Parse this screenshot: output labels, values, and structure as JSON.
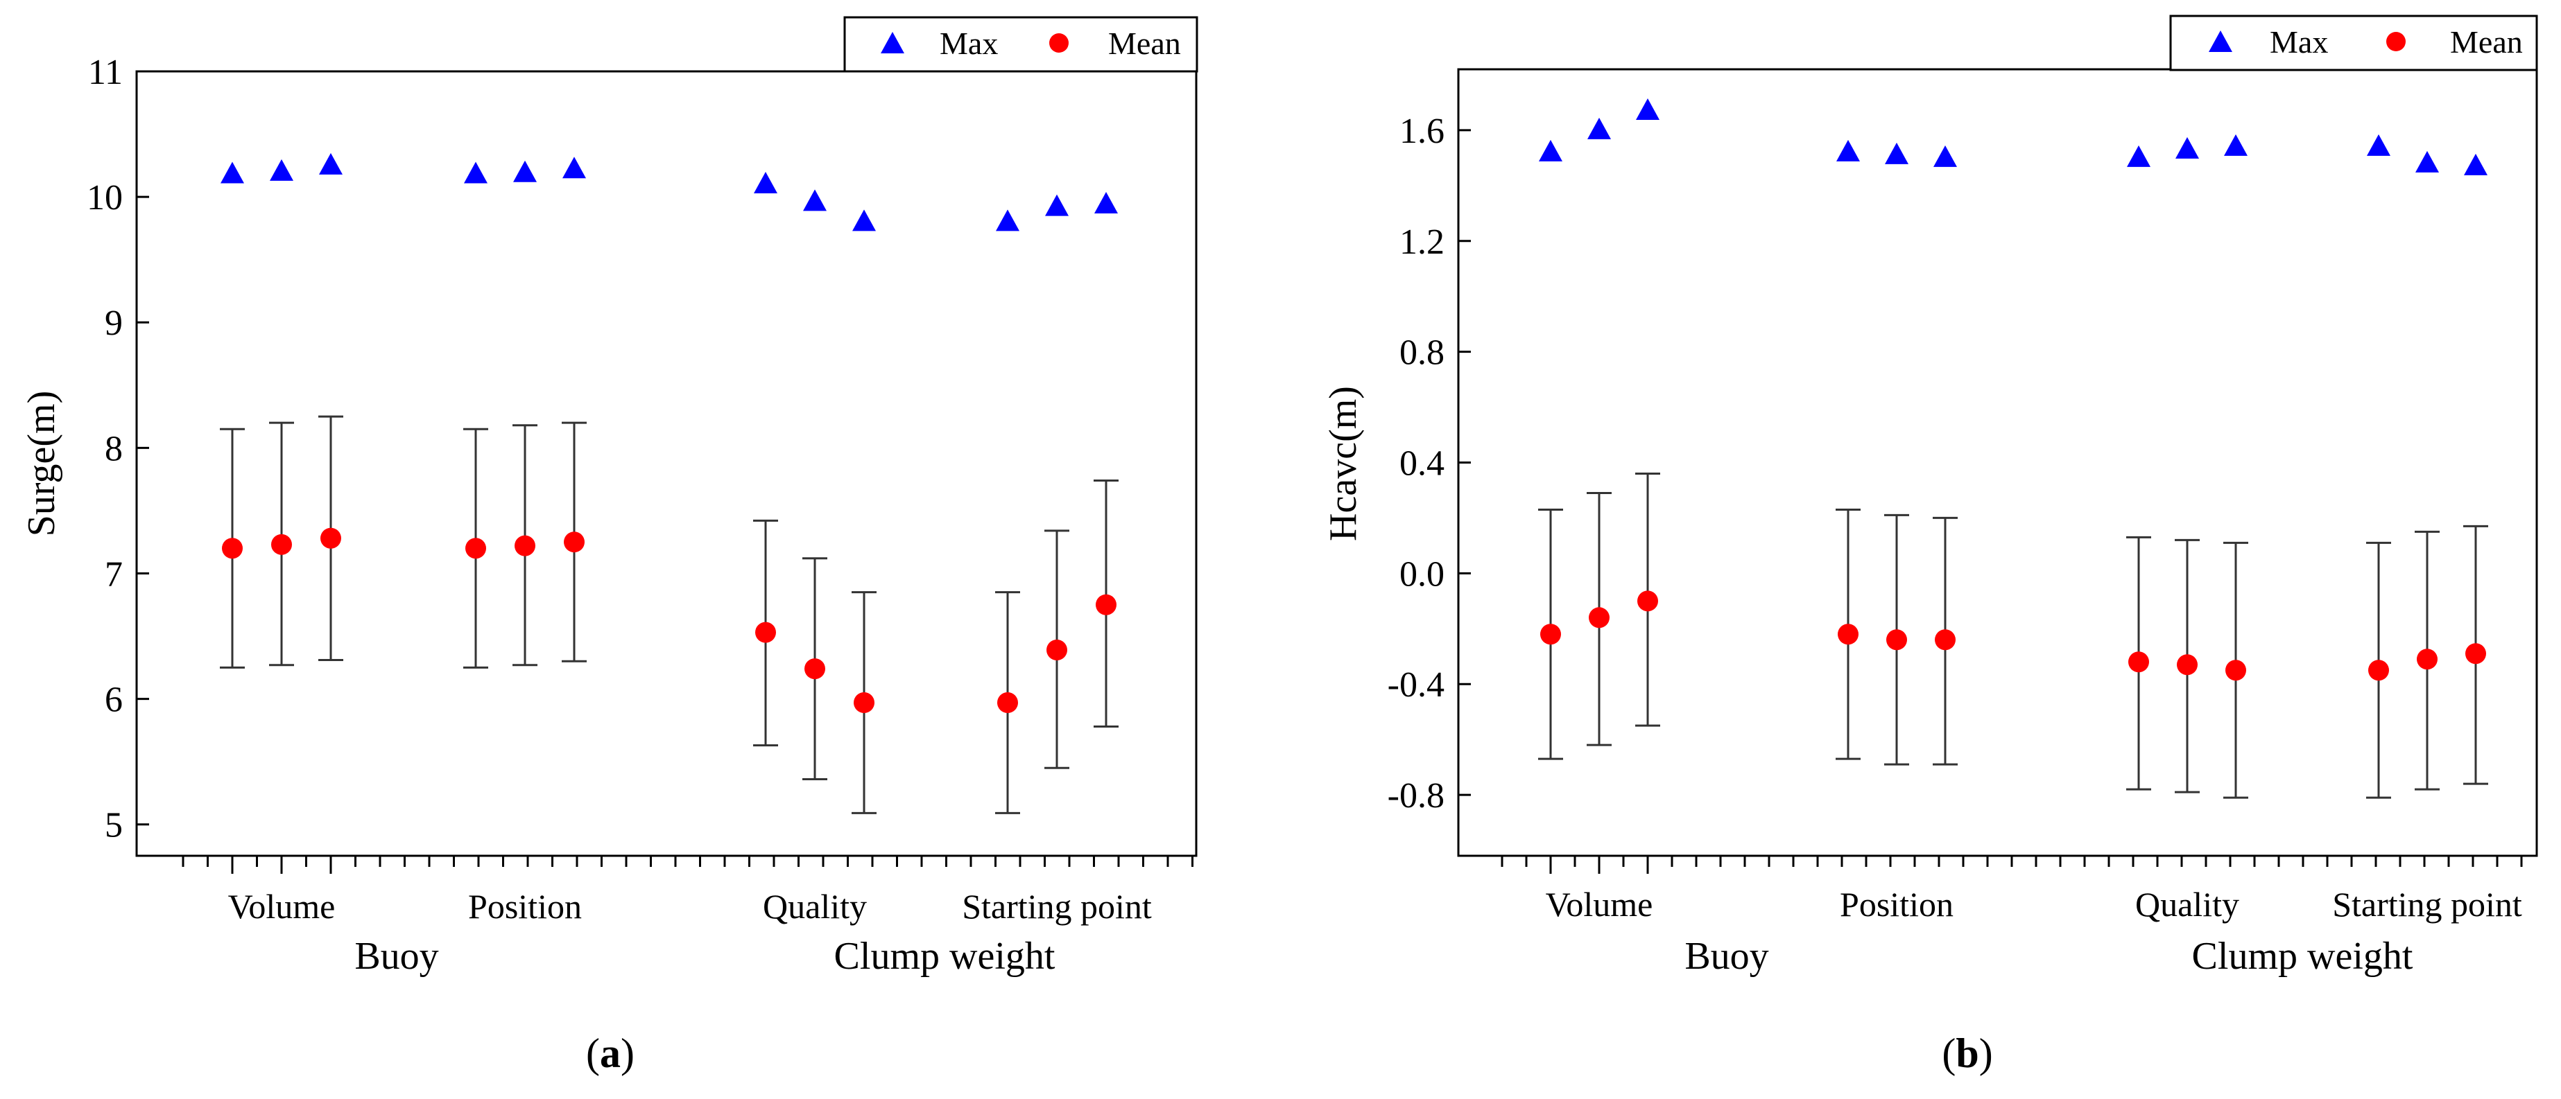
{
  "chart_data": [
    {
      "type": "scatter",
      "panel_label": "a",
      "ylabel": "Surge(m)",
      "ylim": [
        4.75,
        11
      ],
      "yticks": [
        "5",
        "6",
        "7",
        "8",
        "9",
        "10",
        "11"
      ],
      "groups": [
        "Volume",
        "Position",
        "Quality",
        "Starting point"
      ],
      "supergroups": [
        "Buoy",
        "Clump weight"
      ],
      "legend": {
        "max_label": "Max",
        "mean_label": "Mean",
        "position": "top-right"
      },
      "series": [
        {
          "name": "Max",
          "values": [
            10.18,
            10.2,
            10.25,
            10.18,
            10.19,
            10.22,
            10.1,
            9.96,
            9.8,
            9.8,
            9.92,
            9.94
          ]
        },
        {
          "name": "Mean",
          "values": [
            7.2,
            7.23,
            7.28,
            7.2,
            7.22,
            7.25,
            6.53,
            6.24,
            5.97,
            5.97,
            6.39,
            6.75
          ],
          "err_low": [
            6.25,
            6.27,
            6.31,
            6.25,
            6.27,
            6.3,
            5.63,
            5.36,
            5.09,
            5.09,
            5.45,
            5.78
          ],
          "err_high": [
            8.15,
            8.2,
            8.25,
            8.15,
            8.18,
            8.2,
            7.42,
            7.12,
            6.85,
            6.85,
            7.34,
            7.74
          ]
        }
      ]
    },
    {
      "type": "scatter",
      "panel_label": "b",
      "ylabel": "Hcavc(m)",
      "ylim": [
        -1.02,
        1.82
      ],
      "yticks": [
        "-0.8",
        "-0.4",
        "0.0",
        "0.4",
        "0.8",
        "1.2",
        "1.6"
      ],
      "groups": [
        "Volume",
        "Position",
        "Quality",
        "Starting point"
      ],
      "supergroups": [
        "Buoy",
        "Clump weight"
      ],
      "legend": {
        "max_label": "Max",
        "mean_label": "Mean",
        "position": "top-right"
      },
      "series": [
        {
          "name": "Max",
          "values": [
            1.52,
            1.6,
            1.67,
            1.52,
            1.51,
            1.5,
            1.5,
            1.53,
            1.54,
            1.54,
            1.48,
            1.47
          ]
        },
        {
          "name": "Mean",
          "values": [
            -0.22,
            -0.16,
            -0.1,
            -0.22,
            -0.24,
            -0.24,
            -0.32,
            -0.33,
            -0.35,
            -0.35,
            -0.31,
            -0.29
          ],
          "err_low": [
            -0.67,
            -0.62,
            -0.55,
            -0.67,
            -0.69,
            -0.69,
            -0.78,
            -0.79,
            -0.81,
            -0.81,
            -0.78,
            -0.76
          ],
          "err_high": [
            0.23,
            0.29,
            0.36,
            0.23,
            0.21,
            0.2,
            0.13,
            0.12,
            0.11,
            0.11,
            0.15,
            0.17
          ]
        }
      ]
    }
  ],
  "colors": {
    "max": "#0000ff",
    "mean": "#ff0000",
    "axis": "#000000",
    "errorbar": "#333333"
  }
}
